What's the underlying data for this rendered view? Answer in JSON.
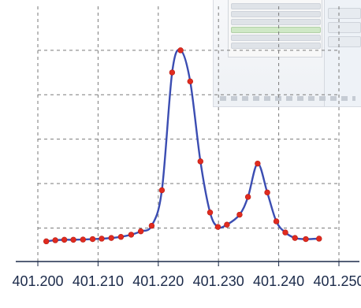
{
  "chart_data": {
    "type": "line",
    "title": "",
    "xlabel": "",
    "ylabel": "",
    "xlim": [
      401.2,
      401.25
    ],
    "ylim": [
      0,
      1
    ],
    "grid": true,
    "x_ticks": [
      "401.200",
      "401.210",
      "401.220",
      "401.230",
      "401.240",
      "401.250"
    ],
    "x_tick_values": [
      401.2,
      401.21,
      401.22,
      401.23,
      401.24,
      401.25
    ],
    "series": [
      {
        "color": "#3b4db2",
        "marker_color": "#e02b1f",
        "x": [
          401.2014,
          401.2029,
          401.2044,
          401.2059,
          401.2075,
          401.2091,
          401.2106,
          401.2122,
          401.2138,
          401.2155,
          401.2171,
          401.2189,
          401.2206,
          401.2223,
          401.2237,
          401.2253,
          401.227,
          401.2286,
          401.2299,
          401.2314,
          401.2335,
          401.2349,
          401.2365,
          401.2381,
          401.2396,
          401.2411,
          401.2427,
          401.2445,
          401.2467
        ],
        "y": [
          0.02,
          0.025,
          0.027,
          0.027,
          0.028,
          0.03,
          0.032,
          0.035,
          0.04,
          0.05,
          0.065,
          0.09,
          0.25,
          0.78,
          0.88,
          0.74,
          0.38,
          0.15,
          0.085,
          0.095,
          0.14,
          0.22,
          0.37,
          0.24,
          0.11,
          0.06,
          0.035,
          0.03,
          0.032
        ]
      }
    ]
  }
}
